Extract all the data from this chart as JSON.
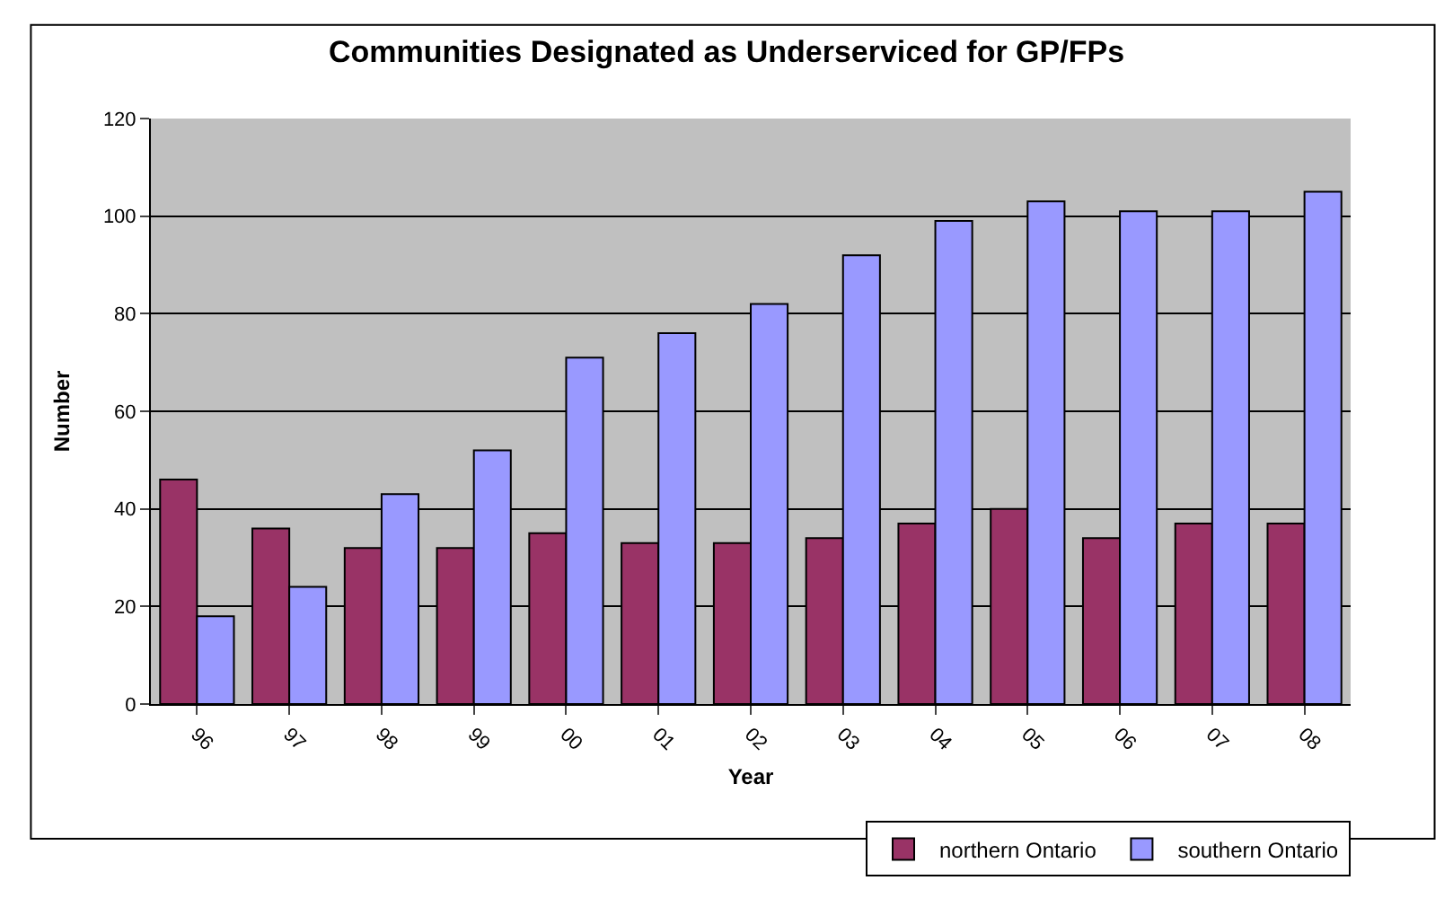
{
  "chart_data": {
    "type": "bar",
    "title": "Communities Designated as Underserviced for GP/FPs",
    "xlabel": "Year",
    "ylabel": "Number",
    "categories": [
      "96",
      "97",
      "98",
      "99",
      "00",
      "01",
      "02",
      "03",
      "04",
      "05",
      "06",
      "07",
      "08"
    ],
    "series": [
      {
        "name": "northern Ontario",
        "color": "#993366",
        "values": [
          46,
          36,
          32,
          32,
          35,
          33,
          33,
          34,
          37,
          40,
          34,
          37,
          37
        ]
      },
      {
        "name": "southern Ontario",
        "color": "#9999ff",
        "values": [
          18,
          24,
          43,
          52,
          71,
          76,
          82,
          92,
          99,
          103,
          101,
          101,
          105
        ]
      }
    ],
    "ylim": [
      0,
      120
    ],
    "yticks": [
      0,
      20,
      40,
      60,
      80,
      100,
      120
    ],
    "grid": "y",
    "legend": "bottom right"
  }
}
